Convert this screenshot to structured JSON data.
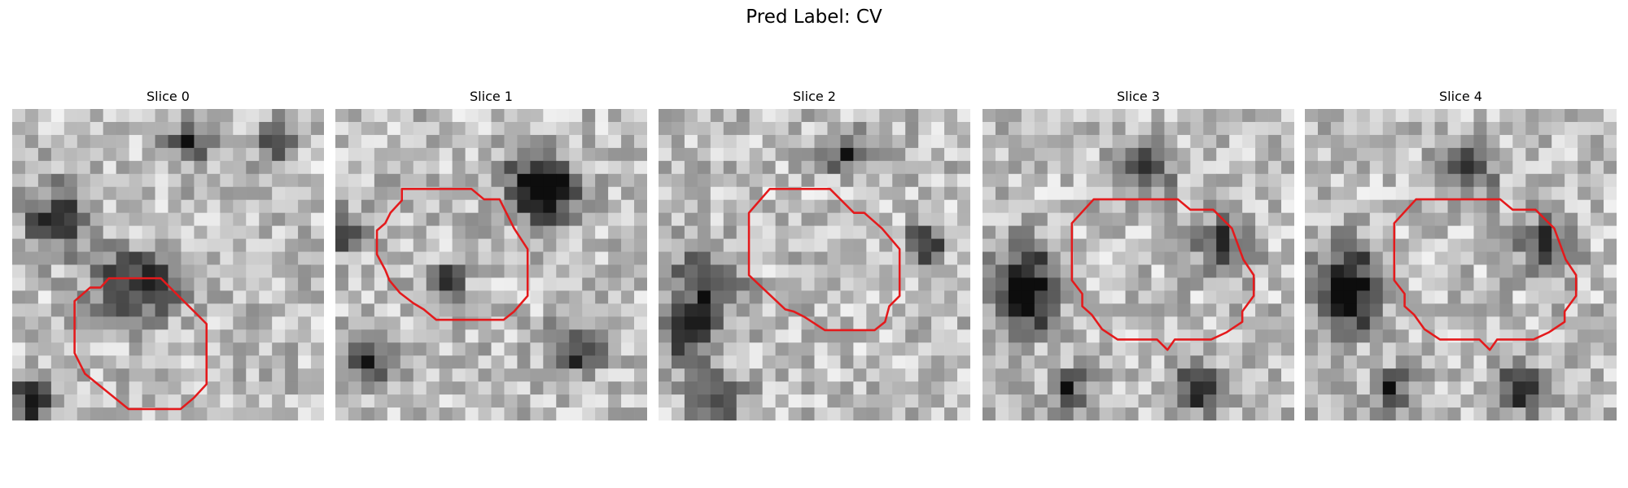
{
  "title": "Pred Label: CV",
  "panels": [
    {
      "title": "Slice 0"
    },
    {
      "title": "Slice 1"
    },
    {
      "title": "Slice 2"
    },
    {
      "title": "Slice 3"
    },
    {
      "title": "Slice 4"
    }
  ]
}
